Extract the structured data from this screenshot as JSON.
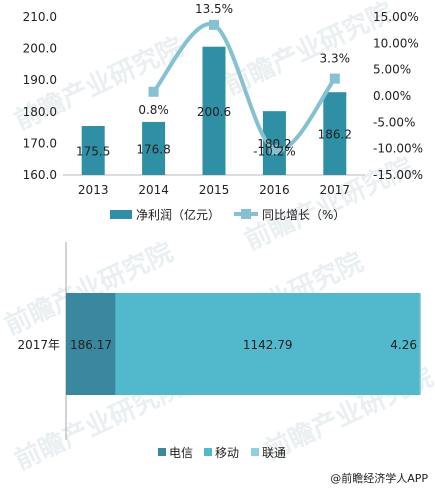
{
  "chart_data": [
    {
      "type": "bar+line",
      "categories": [
        "2013",
        "2014",
        "2015",
        "2016",
        "2017"
      ],
      "series": [
        {
          "name": "净利润（亿元）",
          "type": "bar",
          "axis": "left",
          "values": [
            175.5,
            176.8,
            200.6,
            180.2,
            186.2
          ],
          "labels": [
            "175.5",
            "176.8",
            "200.6",
            "180.2",
            "186.2"
          ]
        },
        {
          "name": "同比增长（%）",
          "type": "line",
          "axis": "right",
          "values": [
            null,
            0.8,
            13.5,
            -10.2,
            3.3
          ],
          "labels": [
            "",
            "0.8%",
            "13.5%",
            "-10.2%",
            "3.3%"
          ]
        }
      ],
      "ylim_left": [
        160,
        210
      ],
      "yticks_left": [
        "160.0",
        "170.0",
        "180.0",
        "190.0",
        "200.0",
        "210.0"
      ],
      "ylim_right": [
        -15,
        15
      ],
      "yticks_right": [
        "-15.00%",
        "-10.00%",
        "-5.00%",
        "0.00%",
        "5.00%",
        "10.00%",
        "15.00%"
      ],
      "legend": "bottom",
      "colors": {
        "bar": "#2f8fa4",
        "line": "#86c1d3"
      }
    },
    {
      "type": "stacked-bar-horizontal",
      "categories": [
        "2017年"
      ],
      "series": [
        {
          "name": "电信",
          "values": [
            186.17
          ],
          "labels": [
            "186.17"
          ]
        },
        {
          "name": "移动",
          "values": [
            1142.79
          ],
          "labels": [
            "1142.79"
          ]
        },
        {
          "name": "联通",
          "values": [
            4.26
          ],
          "labels": [
            "4.26"
          ]
        }
      ],
      "legend": "bottom",
      "colors": {
        "电信": "#3a88a0",
        "移动": "#52b8cc",
        "联通": "#8fd0de"
      }
    }
  ],
  "source": "@前瞻经济学人APP",
  "watermark": "前瞻产业研究院"
}
